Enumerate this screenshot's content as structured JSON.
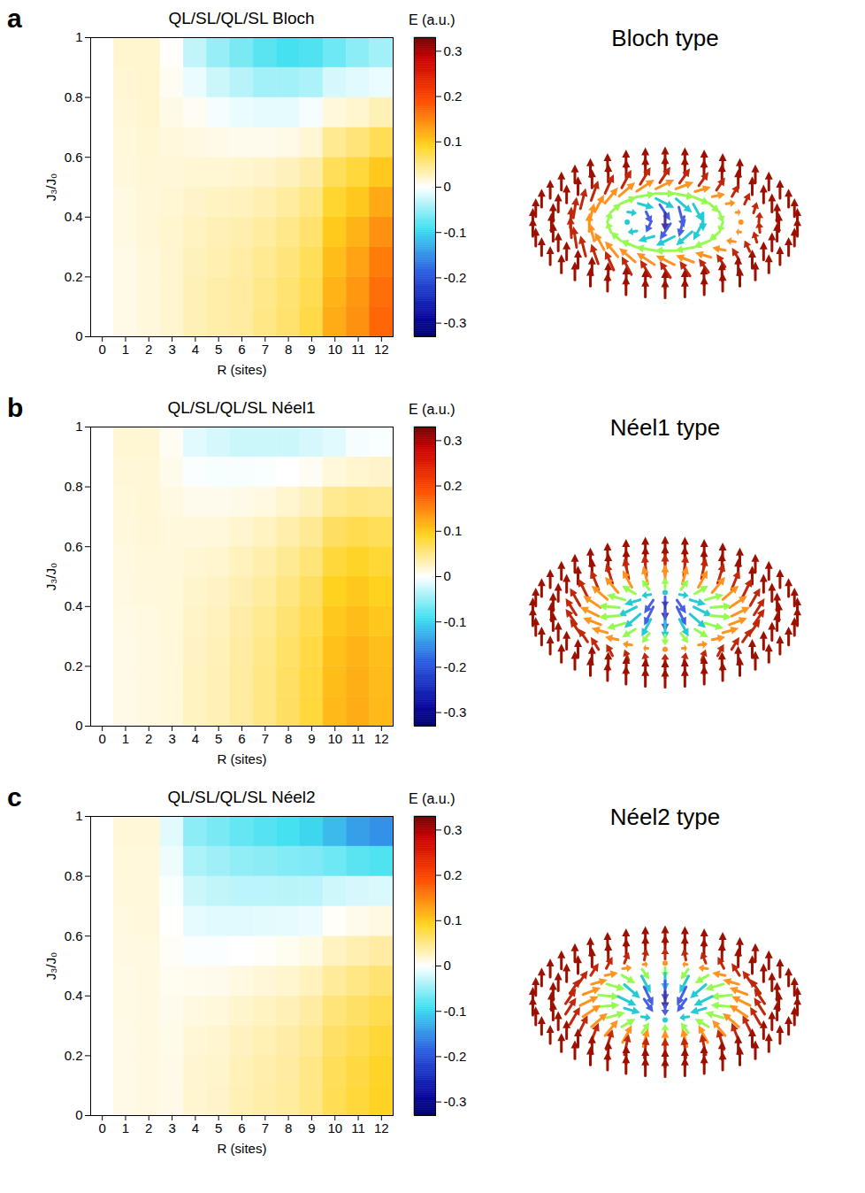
{
  "chart_data": [
    {
      "type": "heatmap",
      "panel": "a",
      "title": "QL/SL/QL/SL Bloch",
      "x_label": "R (sites)",
      "y_label": "J₃/J₀",
      "x": [
        0,
        1,
        2,
        3,
        4,
        5,
        6,
        7,
        8,
        9,
        10,
        11,
        12
      ],
      "y_edges": [
        0,
        0.1,
        0.2,
        0.3,
        0.4,
        0.5,
        0.6,
        0.7,
        0.8,
        0.9,
        1
      ],
      "xlim": [
        -0.5,
        12.5
      ],
      "xticks": [
        0,
        1,
        2,
        3,
        4,
        5,
        6,
        7,
        8,
        9,
        10,
        11,
        12
      ],
      "ylim": [
        0,
        1
      ],
      "yticks": [
        0,
        0.2,
        0.4,
        0.6,
        0.8,
        1
      ],
      "cells": [
        [
          0,
          0,
          0,
          0,
          0,
          0,
          0,
          0,
          0,
          0
        ],
        [
          0.01,
          0.01,
          0.01,
          0.012,
          0.012,
          0.014,
          0.015,
          0.016,
          0.018,
          0.02
        ],
        [
          0.015,
          0.015,
          0.015,
          0.016,
          0.016,
          0.017,
          0.018,
          0.02,
          0.02,
          0.02
        ],
        [
          0.02,
          0.02,
          0.02,
          0.02,
          0.018,
          0.016,
          0.014,
          0.01,
          0.005,
          0.002
        ],
        [
          0.03,
          0.03,
          0.028,
          0.025,
          0.022,
          0.018,
          0.012,
          0.005,
          -0.01,
          -0.03
        ],
        [
          0.035,
          0.035,
          0.032,
          0.03,
          0.025,
          0.018,
          0.01,
          -0.005,
          -0.025,
          -0.05
        ],
        [
          0.04,
          0.04,
          0.037,
          0.033,
          0.027,
          0.02,
          0.008,
          -0.01,
          -0.035,
          -0.065
        ],
        [
          0.05,
          0.048,
          0.045,
          0.04,
          0.032,
          0.022,
          0.008,
          -0.012,
          -0.045,
          -0.08
        ],
        [
          0.06,
          0.058,
          0.054,
          0.048,
          0.04,
          0.028,
          0.01,
          -0.012,
          -0.045,
          -0.09
        ],
        [
          0.075,
          0.072,
          0.068,
          0.06,
          0.05,
          0.037,
          0.018,
          -0.005,
          -0.04,
          -0.085
        ],
        [
          0.12,
          0.115,
          0.108,
          0.098,
          0.085,
          0.068,
          0.045,
          0.015,
          -0.02,
          -0.07
        ],
        [
          0.14,
          0.135,
          0.127,
          0.115,
          0.1,
          0.08,
          0.055,
          0.02,
          -0.015,
          -0.055
        ],
        [
          0.17,
          0.165,
          0.155,
          0.14,
          0.122,
          0.1,
          0.07,
          0.03,
          -0.01,
          -0.045
        ]
      ],
      "colorbar": {
        "label": "E (a.u.)",
        "range": [
          -0.33,
          0.33
        ],
        "ticks": [
          -0.3,
          -0.2,
          -0.1,
          0,
          0.1,
          0.2,
          0.3
        ]
      },
      "texture_title": "Bloch type"
    },
    {
      "type": "heatmap",
      "panel": "b",
      "title": "QL/SL/QL/SL Néel1",
      "x_label": "R (sites)",
      "y_label": "J₃/J₀",
      "x": [
        0,
        1,
        2,
        3,
        4,
        5,
        6,
        7,
        8,
        9,
        10,
        11,
        12
      ],
      "y_edges": [
        0,
        0.1,
        0.2,
        0.3,
        0.4,
        0.5,
        0.6,
        0.7,
        0.8,
        0.9,
        1
      ],
      "xlim": [
        -0.5,
        12.5
      ],
      "xticks": [
        0,
        1,
        2,
        3,
        4,
        5,
        6,
        7,
        8,
        9,
        10,
        11,
        12
      ],
      "ylim": [
        0,
        1
      ],
      "yticks": [
        0,
        0.2,
        0.4,
        0.6,
        0.8,
        1
      ],
      "cells": [
        [
          0,
          0,
          0,
          0,
          0,
          0,
          0,
          0,
          0,
          0
        ],
        [
          0.01,
          0.01,
          0.01,
          0.011,
          0.012,
          0.013,
          0.014,
          0.015,
          0.016,
          0.018
        ],
        [
          0.012,
          0.012,
          0.012,
          0.013,
          0.014,
          0.015,
          0.016,
          0.017,
          0.017,
          0.018
        ],
        [
          0.015,
          0.015,
          0.015,
          0.015,
          0.015,
          0.015,
          0.014,
          0.012,
          0.008,
          0.005
        ],
        [
          0.025,
          0.025,
          0.024,
          0.023,
          0.021,
          0.018,
          0.014,
          0.008,
          -0.002,
          -0.015
        ],
        [
          0.03,
          0.03,
          0.029,
          0.027,
          0.024,
          0.02,
          0.015,
          0.008,
          -0.004,
          -0.02
        ],
        [
          0.04,
          0.04,
          0.038,
          0.036,
          0.032,
          0.027,
          0.02,
          0.01,
          -0.004,
          -0.025
        ],
        [
          0.05,
          0.05,
          0.048,
          0.045,
          0.04,
          0.034,
          0.025,
          0.013,
          -0.003,
          -0.025
        ],
        [
          0.065,
          0.064,
          0.062,
          0.058,
          0.052,
          0.044,
          0.034,
          0.02,
          0,
          -0.025
        ],
        [
          0.08,
          0.079,
          0.076,
          0.072,
          0.065,
          0.056,
          0.044,
          0.028,
          0.005,
          -0.02
        ],
        [
          0.11,
          0.108,
          0.105,
          0.1,
          0.092,
          0.08,
          0.065,
          0.045,
          0.015,
          -0.015
        ],
        [
          0.12,
          0.118,
          0.115,
          0.108,
          0.1,
          0.088,
          0.072,
          0.05,
          0.02,
          -0.005
        ],
        [
          0.11,
          0.109,
          0.106,
          0.1,
          0.092,
          0.082,
          0.068,
          0.048,
          0.022,
          -0.003
        ]
      ],
      "colorbar": {
        "label": "E (a.u.)",
        "range": [
          -0.33,
          0.33
        ],
        "ticks": [
          -0.3,
          -0.2,
          -0.1,
          0,
          0.1,
          0.2,
          0.3
        ]
      },
      "texture_title": "Néel1 type"
    },
    {
      "type": "heatmap",
      "panel": "c",
      "title": "QL/SL/QL/SL Néel2",
      "x_label": "R (sites)",
      "y_label": "J₃/J₀",
      "x": [
        0,
        1,
        2,
        3,
        4,
        5,
        6,
        7,
        8,
        9,
        10,
        11,
        12
      ],
      "y_edges": [
        0,
        0.1,
        0.2,
        0.3,
        0.4,
        0.5,
        0.6,
        0.7,
        0.8,
        0.9,
        1
      ],
      "xlim": [
        -0.5,
        12.5
      ],
      "xticks": [
        0,
        1,
        2,
        3,
        4,
        5,
        6,
        7,
        8,
        9,
        10,
        11,
        12
      ],
      "ylim": [
        0,
        1
      ],
      "yticks": [
        0,
        0.2,
        0.4,
        0.6,
        0.8,
        1
      ],
      "cells": [
        [
          0,
          0,
          0,
          0,
          0,
          0,
          0,
          0,
          0,
          0
        ],
        [
          0.01,
          0.01,
          0.01,
          0.011,
          0.011,
          0.012,
          0.013,
          0.014,
          0.015,
          0.016
        ],
        [
          0.012,
          0.012,
          0.012,
          0.012,
          0.013,
          0.013,
          0.014,
          0.015,
          0.015,
          0.016
        ],
        [
          0.01,
          0.01,
          0.009,
          0.008,
          0.006,
          0.004,
          0.001,
          -0.003,
          -0.008,
          -0.015
        ],
        [
          0.02,
          0.019,
          0.017,
          0.013,
          0.007,
          -0.002,
          -0.012,
          -0.025,
          -0.04,
          -0.055
        ],
        [
          0.022,
          0.021,
          0.019,
          0.015,
          0.008,
          -0.002,
          -0.015,
          -0.03,
          -0.047,
          -0.065
        ],
        [
          0.03,
          0.029,
          0.026,
          0.021,
          0.012,
          0,
          -0.015,
          -0.033,
          -0.053,
          -0.075
        ],
        [
          0.035,
          0.034,
          0.031,
          0.025,
          0.016,
          0.003,
          -0.013,
          -0.033,
          -0.056,
          -0.082
        ],
        [
          0.04,
          0.039,
          0.036,
          0.03,
          0.02,
          0.006,
          -0.012,
          -0.034,
          -0.06,
          -0.09
        ],
        [
          0.05,
          0.049,
          0.045,
          0.038,
          0.027,
          0.011,
          -0.009,
          -0.033,
          -0.062,
          -0.1
        ],
        [
          0.07,
          0.068,
          0.063,
          0.055,
          0.042,
          0.025,
          0.003,
          -0.024,
          -0.07,
          -0.12
        ],
        [
          0.08,
          0.078,
          0.072,
          0.063,
          0.05,
          0.032,
          0.008,
          -0.02,
          -0.08,
          -0.14
        ],
        [
          0.09,
          0.088,
          0.082,
          0.072,
          0.058,
          0.038,
          0.012,
          -0.018,
          -0.085,
          -0.15
        ]
      ],
      "colorbar": {
        "label": "E (a.u.)",
        "range": [
          -0.33,
          0.33
        ],
        "ticks": [
          -0.3,
          -0.2,
          -0.1,
          0,
          0.1,
          0.2,
          0.3
        ]
      },
      "texture_title": "Néel2 type"
    }
  ]
}
